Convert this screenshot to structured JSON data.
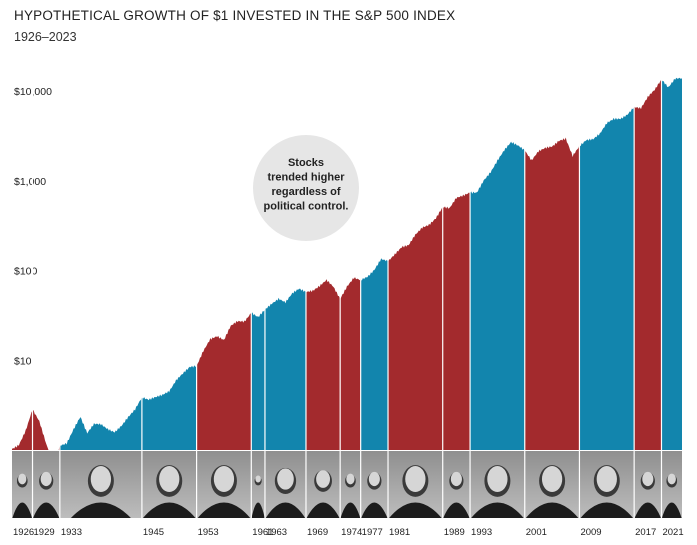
{
  "chart_data": {
    "type": "area",
    "title": "HYPOTHETICAL GROWTH OF $1 INVESTED IN THE S&P 500 INDEX",
    "subtitle": "1926–2023",
    "y_scale": "log",
    "ylim": [
      1,
      15000
    ],
    "xlim": [
      1926,
      2024
    ],
    "ytick_labels": [
      {
        "value": 10,
        "label": "$10"
      },
      {
        "value": 100,
        "label": "$100"
      },
      {
        "value": 1000,
        "label": "$1,000"
      },
      {
        "value": 10000,
        "label": "$10,000"
      }
    ],
    "grid": false,
    "series": {
      "x": [
        1926,
        1927,
        1928,
        1929,
        1930,
        1931,
        1932,
        1933,
        1934,
        1935,
        1936,
        1937,
        1938,
        1939,
        1940,
        1941,
        1942,
        1943,
        1944,
        1945,
        1946,
        1947,
        1948,
        1949,
        1950,
        1951,
        1952,
        1953,
        1954,
        1955,
        1956,
        1957,
        1958,
        1959,
        1960,
        1961,
        1962,
        1963,
        1964,
        1965,
        1966,
        1967,
        1968,
        1969,
        1970,
        1971,
        1972,
        1973,
        1974,
        1975,
        1976,
        1977,
        1978,
        1979,
        1980,
        1981,
        1982,
        1983,
        1984,
        1985,
        1986,
        1987,
        1988,
        1989,
        1990,
        1991,
        1992,
        1993,
        1994,
        1995,
        1996,
        1997,
        1998,
        1999,
        2000,
        2001,
        2002,
        2003,
        2004,
        2005,
        2006,
        2007,
        2008,
        2009,
        2010,
        2011,
        2012,
        2013,
        2014,
        2015,
        2016,
        2017,
        2018,
        2019,
        2020,
        2021,
        2022,
        2023,
        2024
      ],
      "y": [
        1.0,
        1.1,
        1.6,
        2.8,
        2.1,
        1.2,
        0.7,
        1.15,
        1.2,
        1.7,
        2.3,
        1.5,
        1.9,
        1.9,
        1.7,
        1.6,
        1.9,
        2.4,
        2.9,
        3.9,
        3.6,
        3.8,
        4.0,
        4.4,
        5.9,
        7.2,
        8.6,
        8.9,
        13.1,
        17.5,
        18.5,
        16.5,
        23.6,
        26.5,
        26.5,
        33.7,
        30.8,
        37.8,
        44.0,
        49.5,
        44.6,
        55.3,
        61.3,
        56.0,
        58.2,
        66.6,
        79.2,
        67.6,
        49.7,
        68.2,
        84.4,
        78.4,
        83.6,
        99.1,
        131.1,
        124.8,
        151.4,
        185.5,
        197.0,
        259.0,
        308.0,
        325.0,
        379.0,
        499.0,
        484.0,
        631.0,
        679.0,
        747.0,
        757.0,
        1042.0,
        1280.0,
        1707.0,
        2195.0,
        2657.0,
        2415.0,
        2128.0,
        1658.0,
        2134.0,
        2366.0,
        2482.0,
        2873.0,
        3031.0,
        1909.0,
        2414.0,
        2778.0,
        2836.0,
        3290.0,
        4356.0,
        4951.0,
        5020.0,
        5620.0,
        6847.0,
        6547.0,
        8608.0,
        10192.0,
        13117.0,
        10742.0,
        13566.0,
        14000.0
      ]
    },
    "party_colors": {
      "democrat": "#1285ad",
      "republican": "#a32a2d"
    },
    "callout": {
      "lines": [
        "Stocks",
        "trended higher",
        "regardless of",
        "political control."
      ]
    },
    "presidencies": [
      {
        "start_year": 1926,
        "label": "1926",
        "party": "republican"
      },
      {
        "start_year": 1929,
        "label": "1929",
        "party": "republican"
      },
      {
        "start_year": 1933,
        "label": "1933",
        "party": "democrat"
      },
      {
        "start_year": 1945,
        "label": "1945",
        "party": "democrat"
      },
      {
        "start_year": 1953,
        "label": "1953",
        "party": "republican"
      },
      {
        "start_year": 1961,
        "label": "1961",
        "party": "democrat"
      },
      {
        "start_year": 1963,
        "label": "1963",
        "party": "democrat"
      },
      {
        "start_year": 1969,
        "label": "1969",
        "party": "republican"
      },
      {
        "start_year": 1974,
        "label": "1974",
        "party": "republican"
      },
      {
        "start_year": 1977,
        "label": "1977",
        "party": "democrat"
      },
      {
        "start_year": 1981,
        "label": "1981",
        "party": "republican"
      },
      {
        "start_year": 1989,
        "label": "1989",
        "party": "republican"
      },
      {
        "start_year": 1993,
        "label": "1993",
        "party": "democrat"
      },
      {
        "start_year": 2001,
        "label": "2001",
        "party": "republican"
      },
      {
        "start_year": 2009,
        "label": "2009",
        "party": "democrat"
      },
      {
        "start_year": 2017,
        "label": "2017",
        "party": "republican"
      },
      {
        "start_year": 2021,
        "label": "2021",
        "party": "democrat"
      }
    ]
  }
}
